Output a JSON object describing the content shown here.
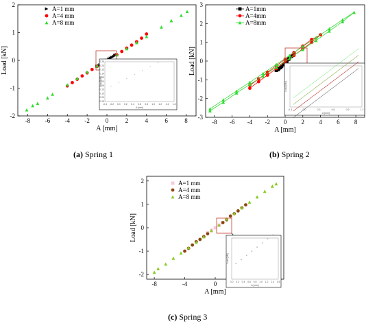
{
  "captions": [
    {
      "letter": "(a)",
      "text": " Spring 1"
    },
    {
      "letter": "(b)",
      "text": " Spring 2"
    },
    {
      "letter": "(c)",
      "text": " Spring 3"
    }
  ],
  "chart_data": [
    {
      "type": "scatter",
      "xlabel": "A [mm]",
      "ylabel": "Load [kN]",
      "xlim": [
        -9,
        9
      ],
      "ylim": [
        -2,
        2
      ],
      "xticks": [
        -8,
        -6,
        -4,
        -2,
        0,
        2,
        4,
        6,
        8
      ],
      "yticks": [
        -2,
        -1,
        0,
        1,
        2
      ],
      "legend_position": "top-left",
      "series": [
        {
          "name": "A=1 mm",
          "marker": "triangle-right",
          "color": "#000000",
          "points": [
            [
              -1,
              -0.21
            ],
            [
              -0.85,
              -0.19
            ],
            [
              -0.7,
              -0.16
            ],
            [
              -0.55,
              -0.12
            ],
            [
              -0.4,
              -0.09
            ],
            [
              -0.25,
              -0.06
            ],
            [
              -0.1,
              -0.03
            ],
            [
              0.05,
              0.01
            ],
            [
              0.2,
              0.05
            ],
            [
              0.35,
              0.08
            ],
            [
              0.5,
              0.11
            ],
            [
              0.65,
              0.14
            ],
            [
              0.8,
              0.18
            ],
            [
              0.95,
              0.21
            ]
          ]
        },
        {
          "name": "A=4 mm",
          "marker": "circle",
          "color": "#ff0000",
          "points": [
            [
              -4,
              -0.92
            ],
            [
              -3.5,
              -0.8
            ],
            [
              -3,
              -0.68
            ],
            [
              -2.5,
              -0.56
            ],
            [
              -2,
              -0.45
            ],
            [
              -1.5,
              -0.33
            ],
            [
              -1,
              -0.22
            ],
            [
              1,
              0.2
            ],
            [
              1.5,
              0.32
            ],
            [
              2,
              0.44
            ],
            [
              2.5,
              0.55
            ],
            [
              3,
              0.67
            ],
            [
              3.5,
              0.8
            ],
            [
              4,
              0.95
            ]
          ]
        },
        {
          "name": "A=8 mm",
          "marker": "triangle-up",
          "color": "#33dd33",
          "points": [
            [
              -8.1,
              -1.78
            ],
            [
              -7.5,
              -1.63
            ],
            [
              -7,
              -1.55
            ],
            [
              -6,
              -1.35
            ],
            [
              -5.5,
              -1.22
            ],
            [
              -4,
              -0.88
            ],
            [
              -3,
              -0.65
            ],
            [
              -2,
              -0.42
            ],
            [
              -1,
              -0.2
            ],
            [
              0,
              0
            ],
            [
              1,
              0.2
            ],
            [
              2,
              0.42
            ],
            [
              3,
              0.64
            ],
            [
              4,
              0.86
            ],
            [
              5.5,
              1.2
            ],
            [
              6.5,
              1.43
            ],
            [
              7.5,
              1.62
            ],
            [
              8.1,
              1.76
            ]
          ]
        }
      ],
      "inset": {
        "xticks": [
          "-0.4",
          "-0.2",
          "0.0",
          "0.2",
          "0.4",
          "0.6",
          "0.8",
          "1.0",
          "1.2",
          "1.4",
          "1.6"
        ],
        "yticks": [
          "0.25",
          "0.20",
          "0.15",
          "0.10",
          "0.05",
          "0.00",
          "-0.05",
          "-0.10",
          "-0.15",
          "-0.20",
          "-0.25"
        ],
        "xlabel": "A [mm]",
        "ylabel": "Load [kN]"
      }
    },
    {
      "type": "line",
      "xlabel": "A [mm]",
      "ylabel": "Load [kN]",
      "xlim": [
        -9,
        9
      ],
      "ylim": [
        -3,
        3
      ],
      "xticks": [
        -8,
        -6,
        -4,
        -2,
        0,
        2,
        4,
        6,
        8
      ],
      "yticks": [
        -3,
        -2,
        -1,
        0,
        1,
        2,
        3
      ],
      "legend_position": "top-center",
      "series": [
        {
          "name": "A=1mm",
          "marker": "square",
          "color": "#000000",
          "points": [
            [
              -1,
              -0.5
            ],
            [
              -0.7,
              -0.4
            ],
            [
              -0.4,
              -0.28
            ],
            [
              -0.1,
              -0.15
            ],
            [
              0.2,
              0
            ],
            [
              0.5,
              0.15
            ],
            [
              0.8,
              0.3
            ],
            [
              1,
              0.4
            ],
            [
              0.7,
              0.25
            ],
            [
              0.4,
              0.1
            ],
            [
              0.1,
              -0.05
            ],
            [
              -0.2,
              -0.2
            ],
            [
              -0.5,
              -0.35
            ],
            [
              -0.8,
              -0.45
            ]
          ]
        },
        {
          "name": "A=4mm",
          "marker": "circle",
          "color": "#ff0000",
          "points": [
            [
              -4,
              -1.45
            ],
            [
              -3,
              -1.1
            ],
            [
              -2,
              -0.75
            ],
            [
              -1,
              -0.4
            ],
            [
              0,
              -0.05
            ],
            [
              1,
              0.3
            ],
            [
              2,
              0.65
            ],
            [
              3,
              1.0
            ],
            [
              4,
              1.4
            ],
            [
              3,
              1.15
            ],
            [
              2,
              0.8
            ],
            [
              1,
              0.45
            ],
            [
              0,
              0.1
            ],
            [
              -1,
              -0.25
            ],
            [
              -2,
              -0.6
            ],
            [
              -3,
              -0.95
            ],
            [
              -4,
              -1.3
            ]
          ]
        },
        {
          "name": "A=8mm",
          "marker": "triangle-up",
          "color": "#33dd33",
          "points": [
            [
              -8.5,
              -2.65
            ],
            [
              -7,
              -2.2
            ],
            [
              -5.5,
              -1.7
            ],
            [
              -4,
              -1.25
            ],
            [
              -2.5,
              -0.8
            ],
            [
              -1,
              -0.33
            ],
            [
              0.5,
              0.15
            ],
            [
              2,
              0.62
            ],
            [
              3.5,
              1.1
            ],
            [
              5,
              1.6
            ],
            [
              6.5,
              2.1
            ],
            [
              7.8,
              2.6
            ],
            [
              6.5,
              2.2
            ],
            [
              5,
              1.72
            ],
            [
              3.5,
              1.25
            ],
            [
              2,
              0.78
            ],
            [
              0.5,
              0.3
            ],
            [
              -1,
              -0.18
            ],
            [
              -2.5,
              -0.66
            ],
            [
              -4,
              -1.13
            ],
            [
              -5.5,
              -1.6
            ],
            [
              -7,
              -2.07
            ],
            [
              -8.5,
              -2.55
            ]
          ]
        }
      ],
      "inset": {
        "xticks": [
          "-0.3",
          "0.0",
          "0.3",
          "0.6",
          "0.9",
          "1.2"
        ],
        "xlabel": "A [mm]",
        "ylabel": "Load [kN]"
      }
    },
    {
      "type": "scatter",
      "xlabel": "A [mm]",
      "ylabel": "Load [kN]",
      "xlim": [
        -9,
        9
      ],
      "ylim": [
        -2.2,
        2.2
      ],
      "xticks": [
        -8,
        -4,
        0,
        4,
        8
      ],
      "yticks": [
        -2,
        -1,
        0,
        1,
        2
      ],
      "legend_position": "top-left",
      "series": [
        {
          "name": "A=1 mm",
          "marker": "square",
          "color": "#f9c8dc",
          "points": [
            [
              -1,
              -0.22
            ],
            [
              -0.5,
              -0.11
            ],
            [
              0,
              0
            ],
            [
              0.5,
              0.11
            ],
            [
              1,
              0.22
            ]
          ]
        },
        {
          "name": "A=4 mm",
          "marker": "circle",
          "color": "#8b4513",
          "points": [
            [
              -4,
              -1.0
            ],
            [
              -3.5,
              -0.88
            ],
            [
              -3,
              -0.74
            ],
            [
              -2.5,
              -0.6
            ],
            [
              -2,
              -0.5
            ],
            [
              -1.5,
              -0.38
            ],
            [
              -1,
              -0.26
            ],
            [
              1,
              0.22
            ],
            [
              1.5,
              0.34
            ],
            [
              2,
              0.5
            ],
            [
              2.5,
              0.6
            ],
            [
              3,
              0.72
            ],
            [
              3.5,
              0.85
            ],
            [
              4,
              0.98
            ]
          ]
        },
        {
          "name": "A=8 mm",
          "marker": "triangle-up",
          "color": "#88cc22",
          "points": [
            [
              -8,
              -1.9
            ],
            [
              -7.5,
              -1.75
            ],
            [
              -6.5,
              -1.55
            ],
            [
              -5.5,
              -1.3
            ],
            [
              -4.5,
              -1.08
            ],
            [
              -3.5,
              -0.85
            ],
            [
              -2.5,
              -0.62
            ],
            [
              -1.5,
              -0.38
            ],
            [
              -0.5,
              -0.12
            ],
            [
              0.5,
              0.12
            ],
            [
              1.5,
              0.38
            ],
            [
              2.5,
              0.62
            ],
            [
              3.5,
              0.86
            ],
            [
              4.5,
              1.1
            ],
            [
              5.5,
              1.32
            ],
            [
              6.5,
              1.56
            ],
            [
              7.5,
              1.78
            ],
            [
              8,
              1.88
            ]
          ]
        }
      ],
      "inset": {
        "xticks": [
          "0.0",
          "0.2",
          "0.4",
          "0.6",
          "0.8",
          "1.0",
          "1.2",
          "1.4",
          "1.6"
        ],
        "xlabel": "A [mm]",
        "ylabel": "Load [kN]"
      }
    }
  ]
}
